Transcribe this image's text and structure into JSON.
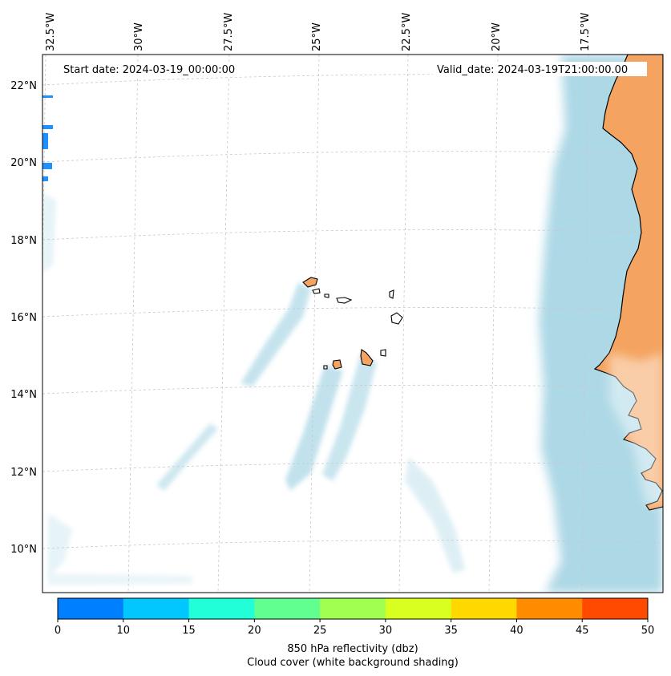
{
  "header": {
    "start_date": "Start date: 2024-03-19_00:00:00",
    "valid_date": "Valid_date: 2024-03-19T21:00:00.00"
  },
  "lon_labels": [
    "32.5°W",
    "30°W",
    "27.5°W",
    "25°W",
    "22.5°W",
    "20°W",
    "17.5°W"
  ],
  "lat_labels": [
    "22°N",
    "20°N",
    "18°N",
    "16°N",
    "14°N",
    "12°N",
    "10°N"
  ],
  "colorbar": {
    "ticks": [
      "0",
      "10",
      "15",
      "20",
      "25",
      "30",
      "35",
      "40",
      "45",
      "50"
    ],
    "colors": [
      "#0080ff",
      "#00c8ff",
      "#20ffd8",
      "#60ff90",
      "#a0ff50",
      "#d8ff20",
      "#ffd800",
      "#ff8c00",
      "#ff4a00"
    ],
    "label": "850 hPa reflectivity (dbz)",
    "sublabel": "Cloud cover (white background shading)"
  },
  "colors": {
    "land": "#f4a460",
    "cloud": "#add8e6",
    "coast": "#000000",
    "grid": "#c8c8c8"
  }
}
